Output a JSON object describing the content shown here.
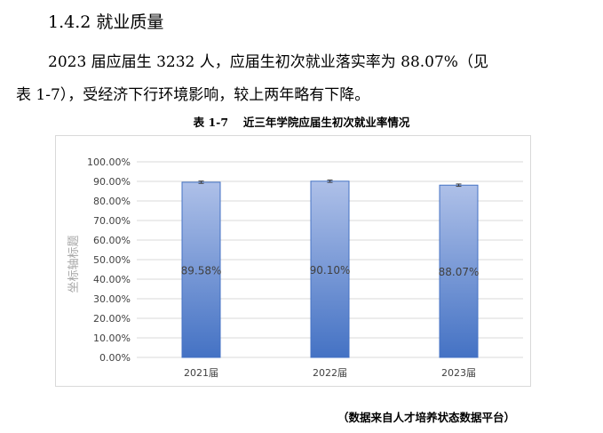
{
  "section": {
    "heading": "1.4.2 就业质量"
  },
  "paragraph": {
    "line1": "2023 届应届生 3232 人，应届生初次就业落实率为 88.07%（见",
    "line2": "表 1-7），受经济下行环境影响，较上两年略有下降。"
  },
  "table_caption": "表 1-7　 近三年学院应届生初次就业率情况",
  "source_note": "（数据来自人才培养状态数据平台）",
  "colors": {
    "bar_top": "#aec0e8",
    "bar_bottom": "#4472c4",
    "bar_border": "#4472c4",
    "grid": "#d9d9d9"
  },
  "chart_data": {
    "type": "bar",
    "categories": [
      "2021届",
      "2022届",
      "2023届"
    ],
    "values": [
      89.58,
      90.1,
      88.07
    ],
    "data_labels": [
      "89.58%",
      "90.10%",
      "88.07%"
    ],
    "ylabel": "坐标轴标题",
    "ylim": [
      0,
      100
    ],
    "y_ticks": [
      "0.00%",
      "10.00%",
      "20.00%",
      "30.00%",
      "40.00%",
      "50.00%",
      "60.00%",
      "70.00%",
      "80.00%",
      "90.00%",
      "100.00%"
    ],
    "error_bars": true,
    "grid": true,
    "legend": "none"
  }
}
